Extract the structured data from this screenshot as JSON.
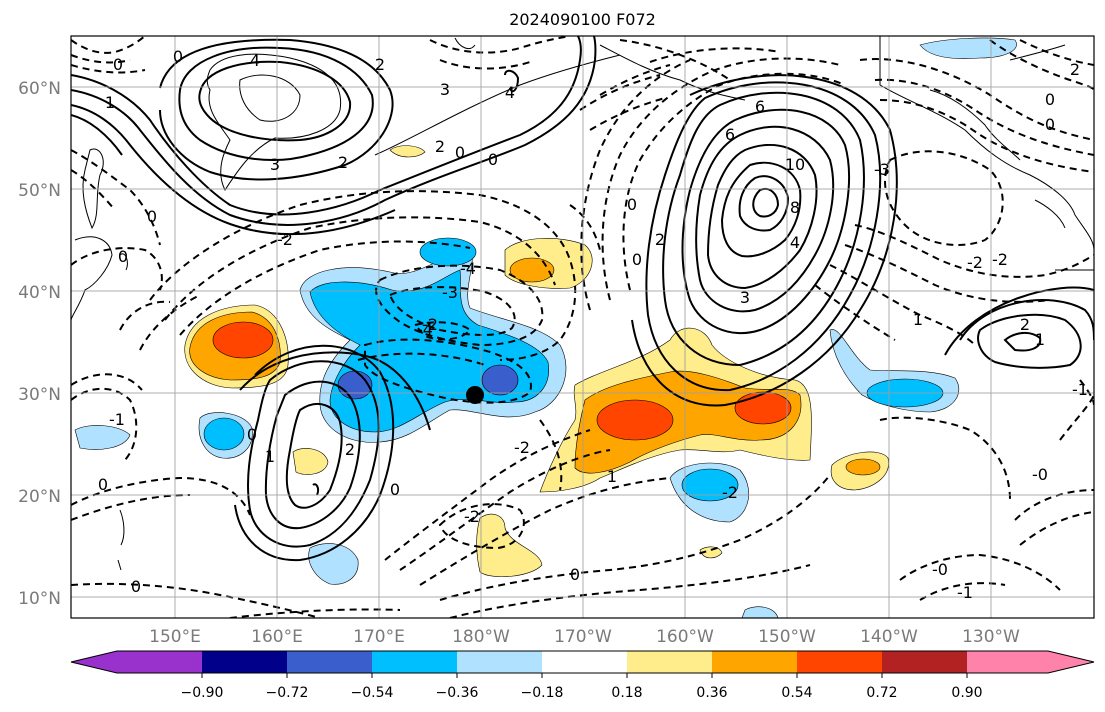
{
  "title": "2024090100 F072",
  "lat_labels": [
    "60°N",
    "50°N",
    "40°N",
    "30°N",
    "20°N",
    "10°N"
  ],
  "lon_labels": [
    "150°E",
    "160°E",
    "170°E",
    "180°W",
    "170°W",
    "160°W",
    "150°W",
    "140°W",
    "130°W"
  ],
  "colorbar": {
    "tick_labels": [
      "−0.90",
      "−0.72",
      "−0.54",
      "−0.36",
      "−0.18",
      "0.18",
      "0.36",
      "0.54",
      "0.72",
      "0.90"
    ],
    "colors": [
      "#9932CC",
      "#00008B",
      "#3A5FCD",
      "#00BFFF",
      "#B0E2FF",
      "#FFFFFF",
      "#FFEC8B",
      "#FFA500",
      "#FF4500",
      "#B22222",
      "#FF82AB"
    ]
  },
  "contour_labels": {
    "c1": "0",
    "c2": "2",
    "c3": "4",
    "c4": "3",
    "c5": "1",
    "c6": "2",
    "c7": "0",
    "c8": "2",
    "c9": "0",
    "c10": "-4",
    "c11": "-3",
    "c12": "-2",
    "c13": "-2",
    "c14": "6",
    "c15": "10",
    "c16": "8",
    "c17": "4",
    "c18": "3",
    "c19": "2",
    "c20": "0",
    "c21": "-2",
    "c22": "-1",
    "c23": "-1",
    "c24": "0",
    "c25": "-1",
    "c26": "-0",
    "c27": "1",
    "c28": "0",
    "c29": "-1",
    "c30": "-2",
    "c31": "2",
    "c32": "1",
    "c33": "0",
    "c34": "-0",
    "c35": "-1",
    "c36": "0",
    "c37": "-3",
    "c38": "-2",
    "c39": "-2",
    "c40": "1",
    "c41": "0",
    "c42": "2",
    "c43": "-0",
    "c44": "-0",
    "c45": "-1"
  }
}
